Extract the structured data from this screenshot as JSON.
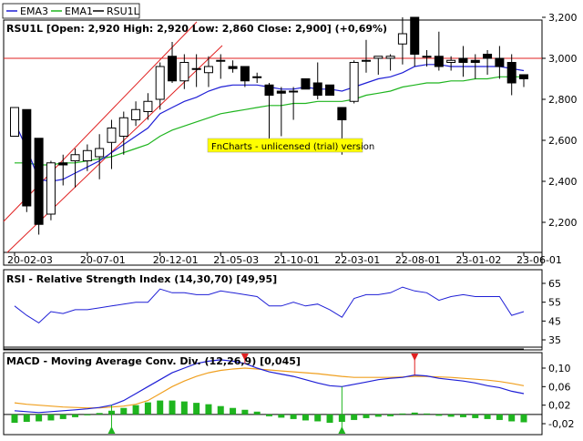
{
  "legend": [
    {
      "name": "EMA3",
      "color": "#1f1fd6"
    },
    {
      "name": "EMA1",
      "color": "#1fb51f"
    },
    {
      "name": "RSU1L",
      "color": "#000000"
    }
  ],
  "price_panel": {
    "title": "RSU1L [Open: 2,920  High: 2,920  Low: 2,860  Close: 2,900] (+0,69%)",
    "watermark": "FnCharts - unlicensed (trial) version",
    "y_ticks": [
      {
        "label": "3,200",
        "value": 3200
      },
      {
        "label": "3,000",
        "value": 3000
      },
      {
        "label": "2,800",
        "value": 2800
      },
      {
        "label": "2,600",
        "value": 2600
      },
      {
        "label": "2,400",
        "value": 2400
      },
      {
        "label": "2,200",
        "value": 2200
      }
    ],
    "x_ticks": [
      {
        "label": "20-02-03",
        "index": 0
      },
      {
        "label": "20-07-01",
        "index": 6
      },
      {
        "label": "20-12-01",
        "index": 12
      },
      {
        "label": "21-05-03",
        "index": 17
      },
      {
        "label": "21-10-01",
        "index": 22
      },
      {
        "label": "22-03-01",
        "index": 27
      },
      {
        "label": "22-08-01",
        "index": 32
      },
      {
        "label": "23-01-02",
        "index": 37
      },
      {
        "label": "23-06-01",
        "index": 42
      }
    ],
    "resistance_level": 3000,
    "colors": {
      "up": "#ffffff",
      "down": "#000000",
      "ema3": "#1f1fd6",
      "ema1": "#1fb51f",
      "channel": "#e02020",
      "resistance": "#e02020",
      "watermark_bg": "#ffff00"
    }
  },
  "rsi_panel": {
    "title": "RSI - Relative Strength Index (14,30,70) [49,95]",
    "y_ticks": [
      {
        "label": "65",
        "value": 65
      },
      {
        "label": "55",
        "value": 55
      },
      {
        "label": "45",
        "value": 45
      },
      {
        "label": "35",
        "value": 35
      }
    ],
    "color": "#1f1fd6"
  },
  "macd_panel": {
    "title": "MACD - Moving Average Conv. Div. (12,26,9) [0,045]",
    "y_ticks": [
      {
        "label": "0,10",
        "value": 0.1
      },
      {
        "label": "0,06",
        "value": 0.06
      },
      {
        "label": "0,02",
        "value": 0.02
      },
      {
        "label": "-0,02",
        "value": -0.02
      }
    ],
    "colors": {
      "macd": "#1f1fd6",
      "signal": "#f0a020",
      "hist": "#1fb51f",
      "sell": "#e02020",
      "buy": "#1fb51f"
    }
  },
  "chart_data": {
    "type": "candlestick",
    "frequency": "monthly",
    "x_labels": [
      "20-02-03",
      "20-07-01",
      "20-12-01",
      "21-05-03",
      "21-10-01",
      "22-03-01",
      "22-08-01",
      "23-01-02",
      "23-06-01"
    ],
    "ohlc": [
      [
        2620,
        2760,
        2620,
        2760
      ],
      [
        2750,
        2750,
        2250,
        2280
      ],
      [
        2610,
        2610,
        2140,
        2190
      ],
      [
        2240,
        2500,
        2210,
        2490
      ],
      [
        2490,
        2530,
        2380,
        2480
      ],
      [
        2500,
        2560,
        2370,
        2530
      ],
      [
        2500,
        2580,
        2450,
        2550
      ],
      [
        2520,
        2630,
        2410,
        2560
      ],
      [
        2590,
        2700,
        2460,
        2660
      ],
      [
        2620,
        2740,
        2530,
        2710
      ],
      [
        2700,
        2790,
        2670,
        2750
      ],
      [
        2740,
        2830,
        2700,
        2790
      ],
      [
        2800,
        2980,
        2750,
        2960
      ],
      [
        3010,
        3080,
        2880,
        2890
      ],
      [
        2890,
        3020,
        2850,
        2980
      ],
      [
        2950,
        3020,
        2860,
        2950
      ],
      [
        2930,
        3010,
        2860,
        2960
      ],
      [
        2990,
        3020,
        2900,
        2990
      ],
      [
        2960,
        2990,
        2930,
        2950
      ],
      [
        2960,
        2960,
        2860,
        2890
      ],
      [
        2910,
        2930,
        2880,
        2910
      ],
      [
        2870,
        2880,
        2600,
        2820
      ],
      [
        2840,
        2860,
        2620,
        2830
      ],
      [
        2840,
        2860,
        2700,
        2840
      ],
      [
        2900,
        2900,
        2850,
        2850
      ],
      [
        2880,
        2980,
        2800,
        2820
      ],
      [
        2870,
        2870,
        2820,
        2820
      ],
      [
        2760,
        2760,
        2530,
        2700
      ],
      [
        2790,
        2990,
        2780,
        2980
      ],
      [
        2990,
        3090,
        2930,
        2990
      ],
      [
        3000,
        3010,
        2920,
        3010
      ],
      [
        3000,
        3020,
        2940,
        3010
      ],
      [
        3070,
        3200,
        2970,
        3120
      ],
      [
        3200,
        3200,
        2960,
        3020
      ],
      [
        3010,
        3040,
        2960,
        3010
      ],
      [
        3010,
        3130,
        2940,
        2960
      ],
      [
        2980,
        3010,
        2940,
        2990
      ],
      [
        3000,
        3060,
        2910,
        2980
      ],
      [
        2990,
        3020,
        2900,
        2980
      ],
      [
        3020,
        3040,
        2920,
        3000
      ],
      [
        3000,
        3060,
        2900,
        2960
      ],
      [
        2980,
        3020,
        2820,
        2880
      ],
      [
        2920,
        2920,
        2860,
        2900
      ]
    ],
    "ema3": [
      2690,
      2560,
      2410,
      2400,
      2410,
      2440,
      2470,
      2500,
      2540,
      2580,
      2620,
      2660,
      2730,
      2760,
      2790,
      2810,
      2840,
      2860,
      2870,
      2870,
      2870,
      2860,
      2850,
      2850,
      2860,
      2850,
      2850,
      2840,
      2860,
      2880,
      2900,
      2910,
      2930,
      2960,
      2970,
      2970,
      2960,
      2960,
      2960,
      2960,
      2960,
      2950,
      2940
    ],
    "ema1": [
      2490,
      2490,
      2480,
      2480,
      2490,
      2490,
      2500,
      2510,
      2520,
      2540,
      2560,
      2580,
      2620,
      2650,
      2670,
      2690,
      2710,
      2730,
      2740,
      2750,
      2760,
      2770,
      2770,
      2780,
      2780,
      2790,
      2790,
      2790,
      2800,
      2820,
      2830,
      2840,
      2860,
      2870,
      2880,
      2880,
      2890,
      2890,
      2900,
      2900,
      2910,
      2910,
      2910
    ],
    "rsi": [
      53,
      48,
      44,
      50,
      49,
      51,
      51,
      52,
      53,
      54,
      55,
      55,
      62,
      60,
      60,
      59,
      59,
      61,
      60,
      59,
      58,
      53,
      53,
      55,
      53,
      54,
      51,
      47,
      57,
      59,
      59,
      60,
      63,
      61,
      60,
      56,
      58,
      59,
      58,
      58,
      58,
      48,
      50
    ],
    "macd": [
      0.008,
      0.006,
      0.004,
      0.006,
      0.008,
      0.01,
      0.012,
      0.015,
      0.02,
      0.03,
      0.045,
      0.06,
      0.075,
      0.09,
      0.1,
      0.11,
      0.115,
      0.118,
      0.115,
      0.11,
      0.1,
      0.092,
      0.087,
      0.082,
      0.075,
      0.068,
      0.062,
      0.06,
      0.065,
      0.07,
      0.075,
      0.078,
      0.08,
      0.085,
      0.083,
      0.078,
      0.075,
      0.072,
      0.068,
      0.062,
      0.058,
      0.05,
      0.045
    ],
    "signal": [
      0.025,
      0.022,
      0.02,
      0.018,
      0.016,
      0.015,
      0.014,
      0.014,
      0.016,
      0.018,
      0.022,
      0.03,
      0.045,
      0.06,
      0.072,
      0.082,
      0.09,
      0.095,
      0.098,
      0.1,
      0.098,
      0.096,
      0.094,
      0.092,
      0.09,
      0.088,
      0.085,
      0.082,
      0.08,
      0.08,
      0.08,
      0.08,
      0.081,
      0.082,
      0.082,
      0.081,
      0.08,
      0.078,
      0.076,
      0.074,
      0.071,
      0.067,
      0.062
    ],
    "histogram": [
      -0.018,
      -0.016,
      -0.015,
      -0.013,
      -0.01,
      -0.006,
      -0.002,
      0.003,
      0.008,
      0.014,
      0.02,
      0.026,
      0.03,
      0.03,
      0.028,
      0.025,
      0.022,
      0.018,
      0.014,
      0.01,
      0.006,
      -0.004,
      -0.007,
      -0.01,
      -0.013,
      -0.015,
      -0.018,
      -0.016,
      -0.012,
      -0.008,
      -0.005,
      -0.004,
      0.002,
      0.004,
      0.002,
      -0.003,
      -0.005,
      -0.006,
      -0.008,
      -0.01,
      -0.012,
      -0.015,
      -0.017
    ],
    "sell_signals": [
      19,
      33
    ],
    "buy_signals": [
      8,
      27
    ]
  }
}
